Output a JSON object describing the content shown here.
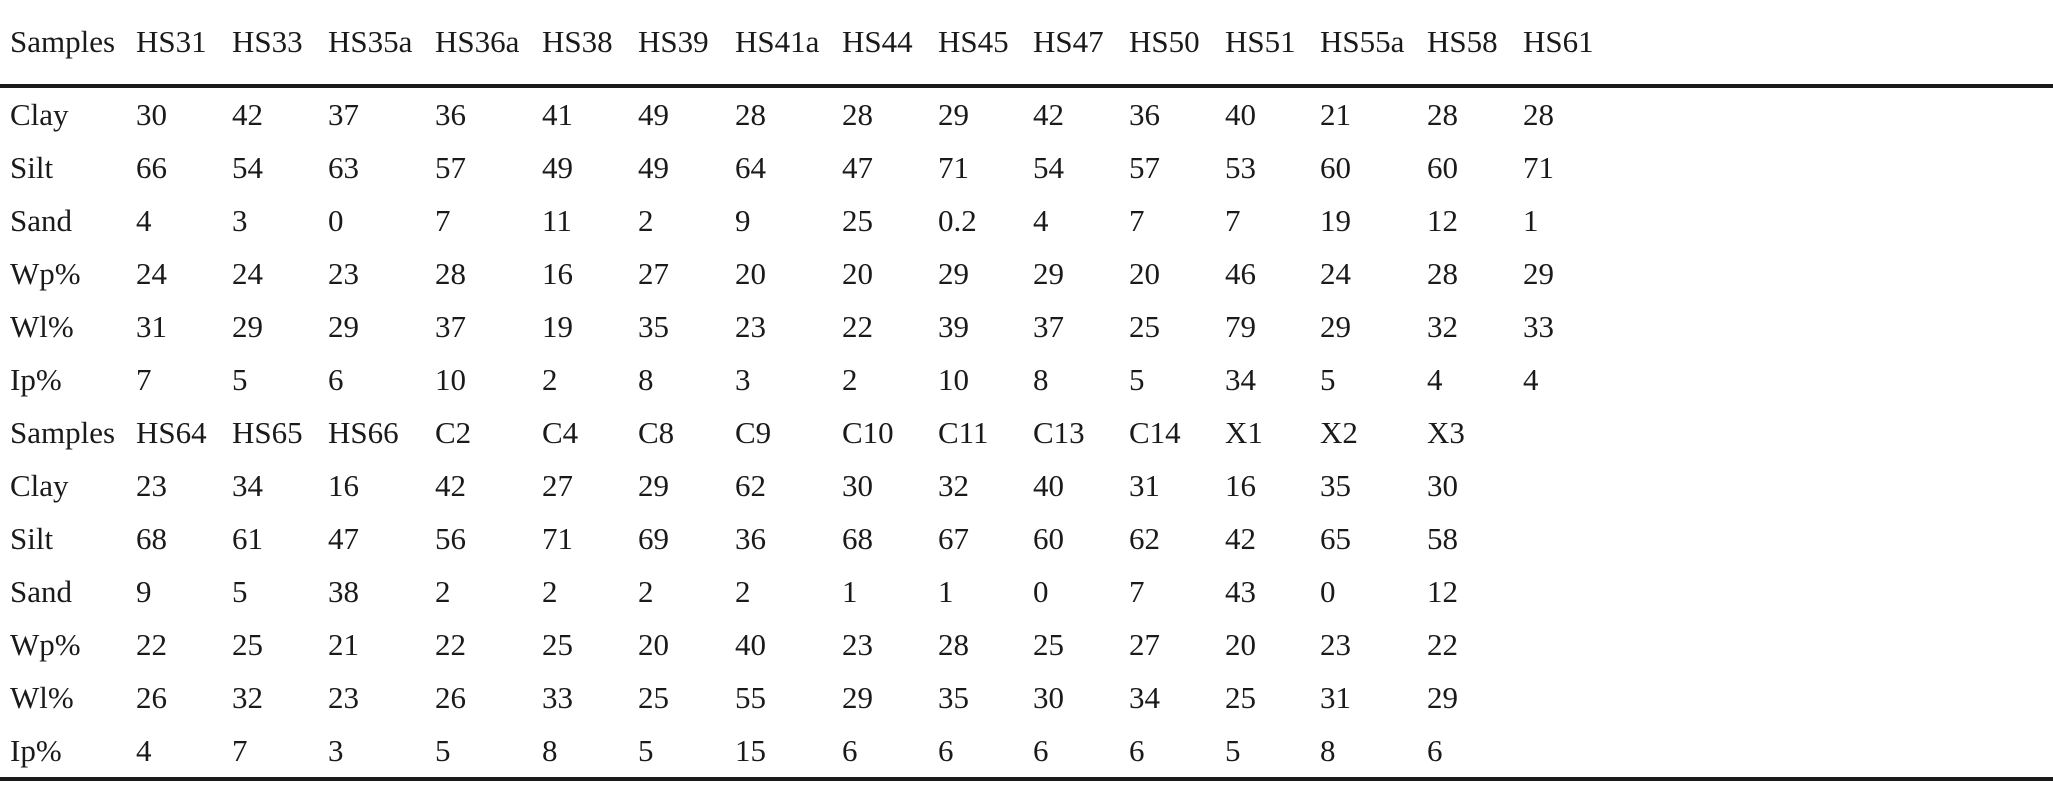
{
  "table": {
    "header": [
      "Samples",
      "HS31",
      "HS33",
      "HS35a",
      "HS36a",
      "HS38",
      "HS39",
      "HS41a",
      "HS44",
      "HS45",
      "HS47",
      "HS50",
      "HS51",
      "HS55a",
      "HS58",
      "HS61"
    ],
    "rows": [
      [
        "Clay",
        "30",
        "42",
        "37",
        "36",
        "41",
        "49",
        "28",
        "28",
        "29",
        "42",
        "36",
        "40",
        "21",
        "28",
        "28"
      ],
      [
        "Silt",
        "66",
        "54",
        "63",
        "57",
        "49",
        "49",
        "64",
        "47",
        "71",
        "54",
        "57",
        "53",
        "60",
        "60",
        "71"
      ],
      [
        "Sand",
        "4",
        "3",
        "0",
        "7",
        "11",
        "2",
        "9",
        "25",
        "0.2",
        "4",
        "7",
        "7",
        "19",
        "12",
        "1"
      ],
      [
        "Wp%",
        "24",
        "24",
        "23",
        "28",
        "16",
        "27",
        "20",
        "20",
        "29",
        "29",
        "20",
        "46",
        "24",
        "28",
        "29"
      ],
      [
        "Wl%",
        "31",
        "29",
        "29",
        "37",
        "19",
        "35",
        "23",
        "22",
        "39",
        "37",
        "25",
        "79",
        "29",
        "32",
        "33"
      ],
      [
        "Ip%",
        "7",
        "5",
        "6",
        "10",
        "2",
        "8",
        "3",
        "2",
        "10",
        "8",
        "5",
        "34",
        "5",
        "4",
        "4"
      ],
      [
        "Samples",
        "HS64",
        "HS65",
        "HS66",
        "C2",
        "C4",
        "C8",
        "C9",
        "C10",
        "C11",
        "C13",
        "C14",
        "X1",
        "X2",
        "X3",
        ""
      ],
      [
        "Clay",
        "23",
        "34",
        "16",
        "42",
        "27",
        "29",
        "62",
        "30",
        "32",
        "40",
        "31",
        "16",
        "35",
        "30",
        ""
      ],
      [
        "Silt",
        "68",
        "61",
        "47",
        "56",
        "71",
        "69",
        "36",
        "68",
        "67",
        "60",
        "62",
        "42",
        "65",
        "58",
        ""
      ],
      [
        "Sand",
        "9",
        "5",
        "38",
        "2",
        "2",
        "2",
        "2",
        "1",
        "1",
        "0",
        "7",
        "43",
        "0",
        "12",
        ""
      ],
      [
        "Wp%",
        "22",
        "25",
        "21",
        "22",
        "25",
        "20",
        "40",
        "23",
        "28",
        "25",
        "27",
        "20",
        "23",
        "22",
        ""
      ],
      [
        "Wl%",
        "26",
        "32",
        "23",
        "26",
        "33",
        "25",
        "55",
        "29",
        "35",
        "30",
        "34",
        "25",
        "31",
        "29",
        ""
      ],
      [
        "Ip%",
        "4",
        "7",
        "3",
        "5",
        "8",
        "5",
        "15",
        "6",
        "6",
        "6",
        "6",
        "5",
        "8",
        "6",
        ""
      ]
    ]
  }
}
